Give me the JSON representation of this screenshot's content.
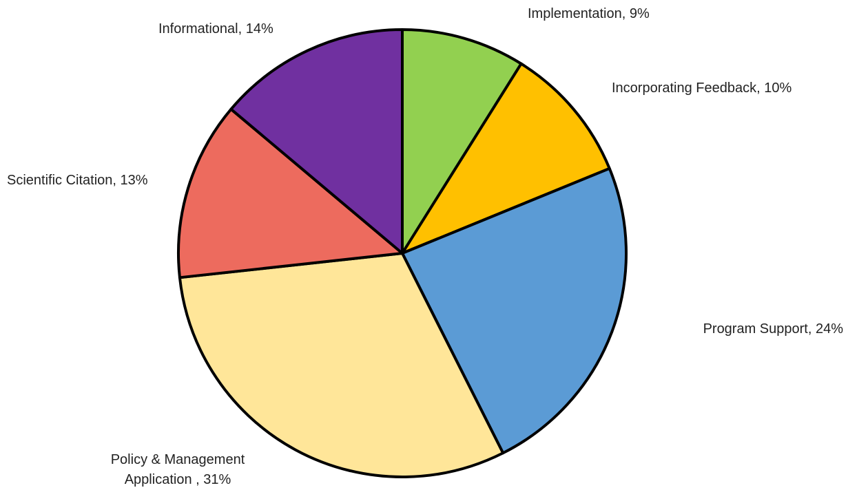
{
  "chart_data": {
    "type": "pie",
    "categories": [
      "Implementation, 9%",
      "Incorporating Feedback, 10%",
      "Program Support, 24%",
      "Policy & Management\nApplication , 31%",
      "Scientific Citation, 13%",
      "Informational, 14%"
    ],
    "values": [
      9,
      10,
      24,
      31,
      13,
      14
    ],
    "colors": [
      "#92d050",
      "#ffc000",
      "#5b9bd5",
      "#ffe699",
      "#ed6b5e",
      "#7030a0"
    ]
  }
}
